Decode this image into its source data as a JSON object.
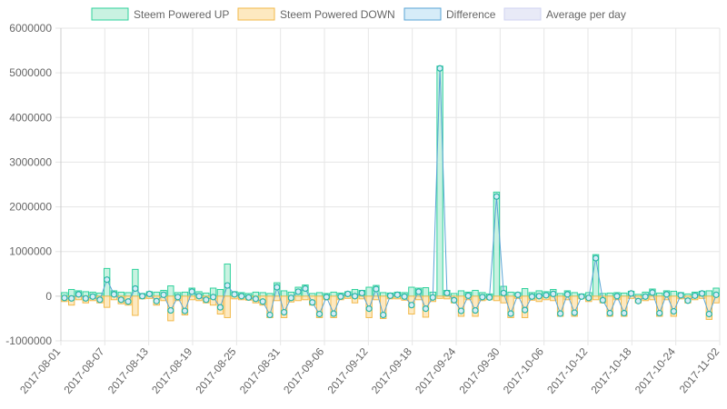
{
  "colors": {
    "up_fill": "#c9f2e1",
    "up_stroke": "#2fd29c",
    "down_fill": "#fde9c0",
    "down_stroke": "#f2b94a",
    "diff_fill": "#d6ecf8",
    "diff_stroke": "#5aa5d6",
    "diff_marker": "#28b6a6",
    "avg_fill": "#e8eaf7",
    "avg_stroke": "#cfd3f2",
    "grid": "#e6e6e6"
  },
  "chart_data": {
    "type": "bar",
    "ylim": [
      -1000000,
      6000000
    ],
    "yticks": [
      -1000000,
      0,
      1000000,
      2000000,
      3000000,
      4000000,
      5000000,
      6000000
    ],
    "ytick_labels": [
      "-1000000",
      "0",
      "1000000",
      "2000000",
      "3000000",
      "4000000",
      "5000000",
      "6000000"
    ],
    "xtick_labels": [
      "2017-08-01",
      "2017-08-07",
      "2017-08-13",
      "2017-08-19",
      "2017-08-25",
      "2017-08-31",
      "2017-09-06",
      "2017-09-12",
      "2017-09-18",
      "2017-09-24",
      "2017-09-30",
      "2017-10-06",
      "2017-10-12",
      "2017-10-18",
      "2017-10-24",
      "2017-11-02"
    ],
    "legend": [
      "Steem Powered UP",
      "Steem Powered DOWN",
      "Difference",
      "Average per day"
    ],
    "legend_position": "top",
    "grid": true,
    "series": [
      {
        "name": "Steem Powered UP",
        "values": [
          80000,
          150000,
          120000,
          100000,
          90000,
          70000,
          620000,
          120000,
          90000,
          80000,
          600000,
          60000,
          100000,
          90000,
          130000,
          230000,
          80000,
          90000,
          180000,
          100000,
          70000,
          180000,
          150000,
          720000,
          100000,
          80000,
          60000,
          90000,
          80000,
          60000,
          300000,
          120000,
          90000,
          200000,
          250000,
          60000,
          80000,
          60000,
          90000,
          70000,
          100000,
          150000,
          130000,
          200000,
          240000,
          80000,
          70000,
          90000,
          80000,
          200000,
          180000,
          190000,
          90000,
          5150000,
          130000,
          60000,
          120000,
          90000,
          130000,
          80000,
          50000,
          2330000,
          220000,
          90000,
          80000,
          170000,
          80000,
          120000,
          100000,
          150000,
          60000,
          120000,
          80000,
          50000,
          80000,
          930000,
          60000,
          70000,
          80000,
          70000,
          110000,
          40000,
          90000,
          160000,
          70000,
          120000,
          110000,
          80000,
          50000,
          90000,
          110000,
          120000,
          180000
        ],
        "type": "bar"
      },
      {
        "name": "Steem Powered DOWN",
        "values": [
          -120000,
          -200000,
          -80000,
          -150000,
          -100000,
          -150000,
          -250000,
          -80000,
          -170000,
          -200000,
          -430000,
          -60000,
          -50000,
          -200000,
          -100000,
          -550000,
          -100000,
          -420000,
          -80000,
          -100000,
          -150000,
          -200000,
          -400000,
          -480000,
          -60000,
          -80000,
          -90000,
          -150000,
          -200000,
          -480000,
          -100000,
          -480000,
          -130000,
          -100000,
          -80000,
          -200000,
          -480000,
          -80000,
          -480000,
          -80000,
          -50000,
          -150000,
          -60000,
          -480000,
          -80000,
          -500000,
          -60000,
          -60000,
          -90000,
          -400000,
          -80000,
          -470000,
          -120000,
          -50000,
          -60000,
          -150000,
          -450000,
          -80000,
          -450000,
          -100000,
          -80000,
          -100000,
          -150000,
          -480000,
          -50000,
          -480000,
          -90000,
          -120000,
          -80000,
          -100000,
          -450000,
          -80000,
          -450000,
          -60000,
          -120000,
          -80000,
          -150000,
          -450000,
          -80000,
          -450000,
          -50000,
          -150000,
          -100000,
          -80000,
          -450000,
          -80000,
          -450000,
          -60000,
          -150000,
          -80000,
          -50000,
          -520000,
          -150000
        ],
        "type": "bar"
      },
      {
        "name": "Difference",
        "values": [
          -40000,
          -50000,
          40000,
          -50000,
          -10000,
          -80000,
          370000,
          40000,
          -80000,
          -120000,
          170000,
          0,
          50000,
          -110000,
          30000,
          -320000,
          -20000,
          -330000,
          100000,
          0,
          -80000,
          -20000,
          -250000,
          240000,
          40000,
          0,
          -30000,
          -60000,
          -120000,
          -420000,
          200000,
          -360000,
          -40000,
          100000,
          170000,
          -140000,
          -400000,
          -20000,
          -390000,
          -10000,
          50000,
          0,
          70000,
          -280000,
          160000,
          -420000,
          10000,
          30000,
          -10000,
          -200000,
          100000,
          -280000,
          -30000,
          5100000,
          70000,
          -90000,
          -330000,
          10000,
          -320000,
          -20000,
          -30000,
          2230000,
          70000,
          -390000,
          30000,
          -310000,
          -10000,
          0,
          20000,
          50000,
          -390000,
          40000,
          -370000,
          -10000,
          -40000,
          850000,
          -90000,
          -380000,
          0,
          -380000,
          60000,
          -110000,
          -10000,
          80000,
          -380000,
          40000,
          -340000,
          20000,
          -100000,
          10000,
          60000,
          -400000,
          30000
        ],
        "type": "line"
      },
      {
        "name": "Average per day",
        "values": [],
        "type": "line"
      }
    ]
  }
}
